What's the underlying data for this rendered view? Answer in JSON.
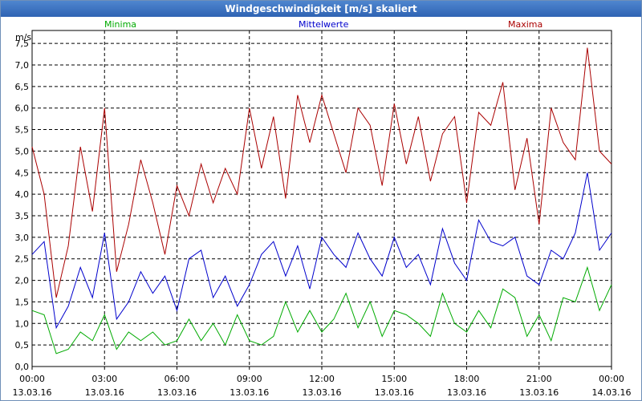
{
  "window": {
    "title": "Windgeschwindigkeit [m/s] skaliert"
  },
  "chart_data": {
    "type": "line",
    "title": "Windgeschwindigkeit [m/s] skaliert",
    "ylabel": "m/s",
    "ylim": [
      0,
      7.8
    ],
    "xlim": [
      0,
      24
    ],
    "y_ticks": [
      "0,0",
      "0,5",
      "1,0",
      "1,5",
      "2,0",
      "2,5",
      "3,0",
      "3,5",
      "4,0",
      "4,5",
      "5,0",
      "5,5",
      "6,0",
      "6,5",
      "7,0",
      "7,5"
    ],
    "x_ticks": [
      {
        "time": "00:00",
        "date": "13.03.16"
      },
      {
        "time": "03:00",
        "date": "13.03.16"
      },
      {
        "time": "06:00",
        "date": "13.03.16"
      },
      {
        "time": "09:00",
        "date": "13.03.16"
      },
      {
        "time": "12:00",
        "date": "13.03.16"
      },
      {
        "time": "15:00",
        "date": "13.03.16"
      },
      {
        "time": "18:00",
        "date": "13.03.16"
      },
      {
        "time": "21:00",
        "date": "13.03.16"
      },
      {
        "time": "00:00",
        "date": "14.03.16"
      }
    ],
    "grid": true,
    "series": [
      {
        "name": "Minima",
        "color": "#00aa00",
        "x": [
          0,
          0.5,
          1,
          1.5,
          2,
          2.5,
          3,
          3.5,
          4,
          4.5,
          5,
          5.5,
          6,
          6.5,
          7,
          7.5,
          8,
          8.5,
          9,
          9.5,
          10,
          10.5,
          11,
          11.5,
          12,
          12.5,
          13,
          13.5,
          14,
          14.5,
          15,
          15.5,
          16,
          16.5,
          17,
          17.5,
          18,
          18.5,
          19,
          19.5,
          20,
          20.5,
          21,
          21.5,
          22,
          22.5,
          23,
          23.5,
          24
        ],
        "values": [
          1.3,
          1.2,
          0.3,
          0.4,
          0.8,
          0.6,
          1.2,
          0.4,
          0.8,
          0.6,
          0.8,
          0.5,
          0.6,
          1.1,
          0.6,
          1.0,
          0.5,
          1.2,
          0.6,
          0.5,
          0.7,
          1.5,
          0.8,
          1.3,
          0.8,
          1.1,
          1.7,
          0.9,
          1.5,
          0.7,
          1.3,
          1.2,
          1.0,
          0.7,
          1.7,
          1.0,
          0.8,
          1.3,
          0.9,
          1.8,
          1.6,
          0.7,
          1.2,
          0.6,
          1.6,
          1.5,
          2.3,
          1.3,
          1.9
        ]
      },
      {
        "name": "Mittelwerte",
        "color": "#0000cc",
        "x": [
          0,
          0.5,
          1,
          1.5,
          2,
          2.5,
          3,
          3.5,
          4,
          4.5,
          5,
          5.5,
          6,
          6.5,
          7,
          7.5,
          8,
          8.5,
          9,
          9.5,
          10,
          10.5,
          11,
          11.5,
          12,
          12.5,
          13,
          13.5,
          14,
          14.5,
          15,
          15.5,
          16,
          16.5,
          17,
          17.5,
          18,
          18.5,
          19,
          19.5,
          20,
          20.5,
          21,
          21.5,
          22,
          22.5,
          23,
          23.5,
          24
        ],
        "values": [
          2.6,
          2.9,
          0.9,
          1.4,
          2.3,
          1.6,
          3.1,
          1.1,
          1.5,
          2.2,
          1.7,
          2.1,
          1.3,
          2.5,
          2.7,
          1.6,
          2.1,
          1.4,
          1.9,
          2.6,
          2.9,
          2.1,
          2.8,
          1.8,
          3.0,
          2.6,
          2.3,
          3.1,
          2.5,
          2.1,
          3.0,
          2.3,
          2.6,
          1.9,
          3.2,
          2.4,
          2.0,
          3.4,
          2.9,
          2.8,
          3.0,
          2.1,
          1.9,
          2.7,
          2.5,
          3.1,
          4.5,
          2.7,
          3.1
        ]
      },
      {
        "name": "Maxima",
        "color": "#aa0000",
        "x": [
          0,
          0.5,
          1,
          1.5,
          2,
          2.5,
          3,
          3.5,
          4,
          4.5,
          5,
          5.5,
          6,
          6.5,
          7,
          7.5,
          8,
          8.5,
          9,
          9.5,
          10,
          10.5,
          11,
          11.5,
          12,
          12.5,
          13,
          13.5,
          14,
          14.5,
          15,
          15.5,
          16,
          16.5,
          17,
          17.5,
          18,
          18.5,
          19,
          19.5,
          20,
          20.5,
          21,
          21.5,
          22,
          22.5,
          23,
          23.5,
          24
        ],
        "values": [
          5.1,
          4.0,
          1.6,
          2.8,
          5.1,
          3.6,
          6.0,
          2.2,
          3.3,
          4.8,
          3.8,
          2.6,
          4.2,
          3.5,
          4.7,
          3.8,
          4.6,
          4.0,
          6.0,
          4.6,
          5.8,
          3.9,
          6.3,
          5.2,
          6.3,
          5.4,
          4.5,
          6.0,
          5.6,
          4.2,
          6.1,
          4.7,
          5.8,
          4.3,
          5.4,
          5.8,
          3.8,
          5.9,
          5.6,
          6.6,
          4.1,
          5.3,
          3.3,
          6.0,
          5.2,
          4.8,
          7.4,
          5.0,
          4.7
        ]
      }
    ]
  }
}
